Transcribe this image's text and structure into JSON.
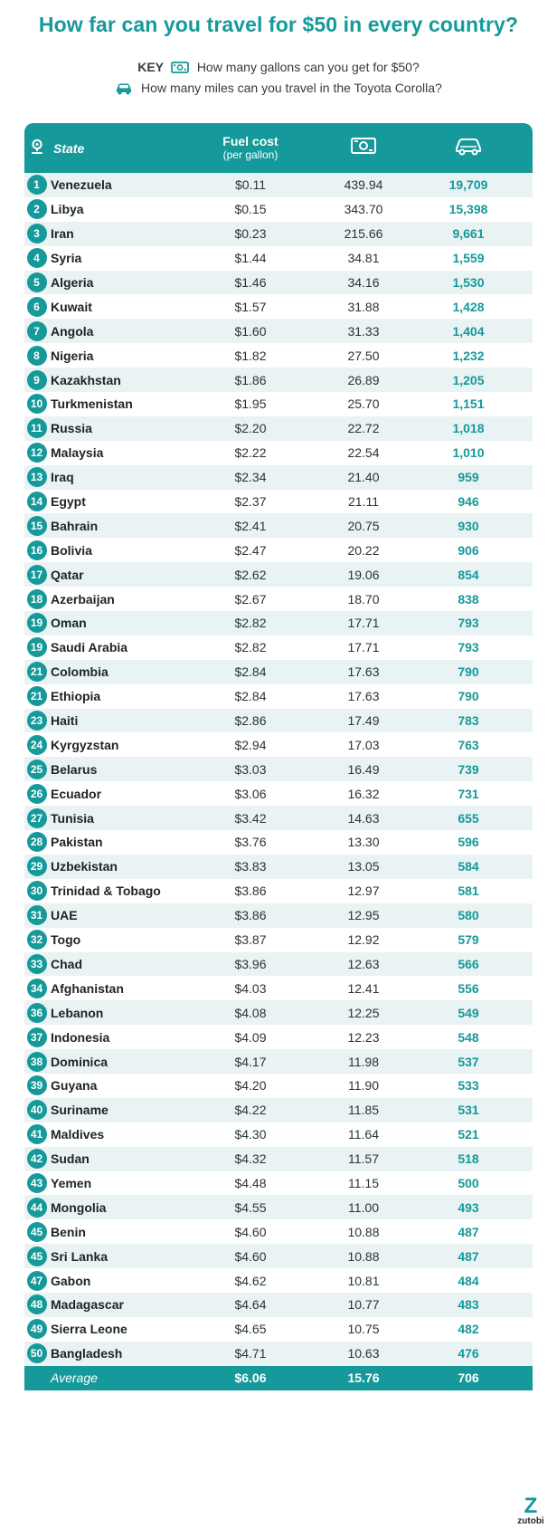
{
  "title": "How far can you travel for $50 in every country?",
  "key": {
    "label": "KEY",
    "money_text": "How many gallons can you get for $50?",
    "car_text": "How many miles can you travel in the Toyota Corolla?"
  },
  "colors": {
    "accent": "#16999a",
    "row_alt": "#e9f3f3"
  },
  "icons": {
    "state": "map-pin-icon",
    "money": "banknote-icon",
    "car": "car-icon"
  },
  "header": {
    "state": "State",
    "fuel_line1": "Fuel cost",
    "fuel_line2": "(per gallon)"
  },
  "chart_data": {
    "type": "table",
    "title": "How far can you travel for $50 in every country?",
    "columns": [
      "Rank",
      "State",
      "Fuel cost (per gallon)",
      "Gallons for $50",
      "Miles in Toyota Corolla"
    ],
    "rows": [
      {
        "rank": "1",
        "country": "Venezuela",
        "fuel": "$0.11",
        "gallons": "439.94",
        "miles": "19,709"
      },
      {
        "rank": "2",
        "country": "Libya",
        "fuel": "$0.15",
        "gallons": "343.70",
        "miles": "15,398"
      },
      {
        "rank": "3",
        "country": "Iran",
        "fuel": "$0.23",
        "gallons": "215.66",
        "miles": "9,661"
      },
      {
        "rank": "4",
        "country": "Syria",
        "fuel": "$1.44",
        "gallons": "34.81",
        "miles": "1,559"
      },
      {
        "rank": "5",
        "country": "Algeria",
        "fuel": "$1.46",
        "gallons": "34.16",
        "miles": "1,530"
      },
      {
        "rank": "6",
        "country": "Kuwait",
        "fuel": "$1.57",
        "gallons": "31.88",
        "miles": "1,428"
      },
      {
        "rank": "7",
        "country": "Angola",
        "fuel": "$1.60",
        "gallons": "31.33",
        "miles": "1,404"
      },
      {
        "rank": "8",
        "country": "Nigeria",
        "fuel": "$1.82",
        "gallons": "27.50",
        "miles": "1,232"
      },
      {
        "rank": "9",
        "country": "Kazakhstan",
        "fuel": "$1.86",
        "gallons": "26.89",
        "miles": "1,205"
      },
      {
        "rank": "10",
        "country": "Turkmenistan",
        "fuel": "$1.95",
        "gallons": "25.70",
        "miles": "1,151"
      },
      {
        "rank": "11",
        "country": "Russia",
        "fuel": "$2.20",
        "gallons": "22.72",
        "miles": "1,018"
      },
      {
        "rank": "12",
        "country": "Malaysia",
        "fuel": "$2.22",
        "gallons": "22.54",
        "miles": "1,010"
      },
      {
        "rank": "13",
        "country": "Iraq",
        "fuel": "$2.34",
        "gallons": "21.40",
        "miles": "959"
      },
      {
        "rank": "14",
        "country": "Egypt",
        "fuel": "$2.37",
        "gallons": "21.11",
        "miles": "946"
      },
      {
        "rank": "15",
        "country": "Bahrain",
        "fuel": "$2.41",
        "gallons": "20.75",
        "miles": "930"
      },
      {
        "rank": "16",
        "country": "Bolivia",
        "fuel": "$2.47",
        "gallons": "20.22",
        "miles": "906"
      },
      {
        "rank": "17",
        "country": "Qatar",
        "fuel": "$2.62",
        "gallons": "19.06",
        "miles": "854"
      },
      {
        "rank": "18",
        "country": "Azerbaijan",
        "fuel": "$2.67",
        "gallons": "18.70",
        "miles": "838"
      },
      {
        "rank": "19",
        "country": "Oman",
        "fuel": "$2.82",
        "gallons": "17.71",
        "miles": "793"
      },
      {
        "rank": "19",
        "country": "Saudi Arabia",
        "fuel": "$2.82",
        "gallons": "17.71",
        "miles": "793"
      },
      {
        "rank": "21",
        "country": "Colombia",
        "fuel": "$2.84",
        "gallons": "17.63",
        "miles": "790"
      },
      {
        "rank": "21",
        "country": "Ethiopia",
        "fuel": "$2.84",
        "gallons": "17.63",
        "miles": "790"
      },
      {
        "rank": "23",
        "country": "Haiti",
        "fuel": "$2.86",
        "gallons": "17.49",
        "miles": "783"
      },
      {
        "rank": "24",
        "country": "Kyrgyzstan",
        "fuel": "$2.94",
        "gallons": "17.03",
        "miles": "763"
      },
      {
        "rank": "25",
        "country": "Belarus",
        "fuel": "$3.03",
        "gallons": "16.49",
        "miles": "739"
      },
      {
        "rank": "26",
        "country": "Ecuador",
        "fuel": "$3.06",
        "gallons": "16.32",
        "miles": "731"
      },
      {
        "rank": "27",
        "country": "Tunisia",
        "fuel": "$3.42",
        "gallons": "14.63",
        "miles": "655"
      },
      {
        "rank": "28",
        "country": "Pakistan",
        "fuel": "$3.76",
        "gallons": "13.30",
        "miles": "596"
      },
      {
        "rank": "29",
        "country": "Uzbekistan",
        "fuel": "$3.83",
        "gallons": "13.05",
        "miles": "584"
      },
      {
        "rank": "30",
        "country": "Trinidad & Tobago",
        "fuel": "$3.86",
        "gallons": "12.97",
        "miles": "581"
      },
      {
        "rank": "31",
        "country": "UAE",
        "fuel": "$3.86",
        "gallons": "12.95",
        "miles": "580"
      },
      {
        "rank": "32",
        "country": "Togo",
        "fuel": "$3.87",
        "gallons": "12.92",
        "miles": "579"
      },
      {
        "rank": "33",
        "country": "Chad",
        "fuel": "$3.96",
        "gallons": "12.63",
        "miles": "566"
      },
      {
        "rank": "34",
        "country": "Afghanistan",
        "fuel": "$4.03",
        "gallons": "12.41",
        "miles": "556"
      },
      {
        "rank": "36",
        "country": "Lebanon",
        "fuel": "$4.08",
        "gallons": "12.25",
        "miles": "549"
      },
      {
        "rank": "37",
        "country": "Indonesia",
        "fuel": "$4.09",
        "gallons": "12.23",
        "miles": "548"
      },
      {
        "rank": "38",
        "country": "Dominica",
        "fuel": "$4.17",
        "gallons": "11.98",
        "miles": "537"
      },
      {
        "rank": "39",
        "country": "Guyana",
        "fuel": "$4.20",
        "gallons": "11.90",
        "miles": "533"
      },
      {
        "rank": "40",
        "country": "Suriname",
        "fuel": "$4.22",
        "gallons": "11.85",
        "miles": "531"
      },
      {
        "rank": "41",
        "country": "Maldives",
        "fuel": "$4.30",
        "gallons": "11.64",
        "miles": "521"
      },
      {
        "rank": "42",
        "country": "Sudan",
        "fuel": "$4.32",
        "gallons": "11.57",
        "miles": "518"
      },
      {
        "rank": "43",
        "country": "Yemen",
        "fuel": "$4.48",
        "gallons": "11.15",
        "miles": "500"
      },
      {
        "rank": "44",
        "country": "Mongolia",
        "fuel": "$4.55",
        "gallons": "11.00",
        "miles": "493"
      },
      {
        "rank": "45",
        "country": "Benin",
        "fuel": "$4.60",
        "gallons": "10.88",
        "miles": "487"
      },
      {
        "rank": "45",
        "country": "Sri Lanka",
        "fuel": "$4.60",
        "gallons": "10.88",
        "miles": "487"
      },
      {
        "rank": "47",
        "country": "Gabon",
        "fuel": "$4.62",
        "gallons": "10.81",
        "miles": "484"
      },
      {
        "rank": "48",
        "country": "Madagascar",
        "fuel": "$4.64",
        "gallons": "10.77",
        "miles": "483"
      },
      {
        "rank": "49",
        "country": "Sierra Leone",
        "fuel": "$4.65",
        "gallons": "10.75",
        "miles": "482"
      },
      {
        "rank": "50",
        "country": "Bangladesh",
        "fuel": "$4.71",
        "gallons": "10.63",
        "miles": "476"
      }
    ],
    "average": {
      "label": "Average",
      "fuel": "$6.06",
      "gallons": "15.76",
      "miles": "706"
    }
  },
  "logo": {
    "mark": "Z",
    "text": "zutobi"
  }
}
